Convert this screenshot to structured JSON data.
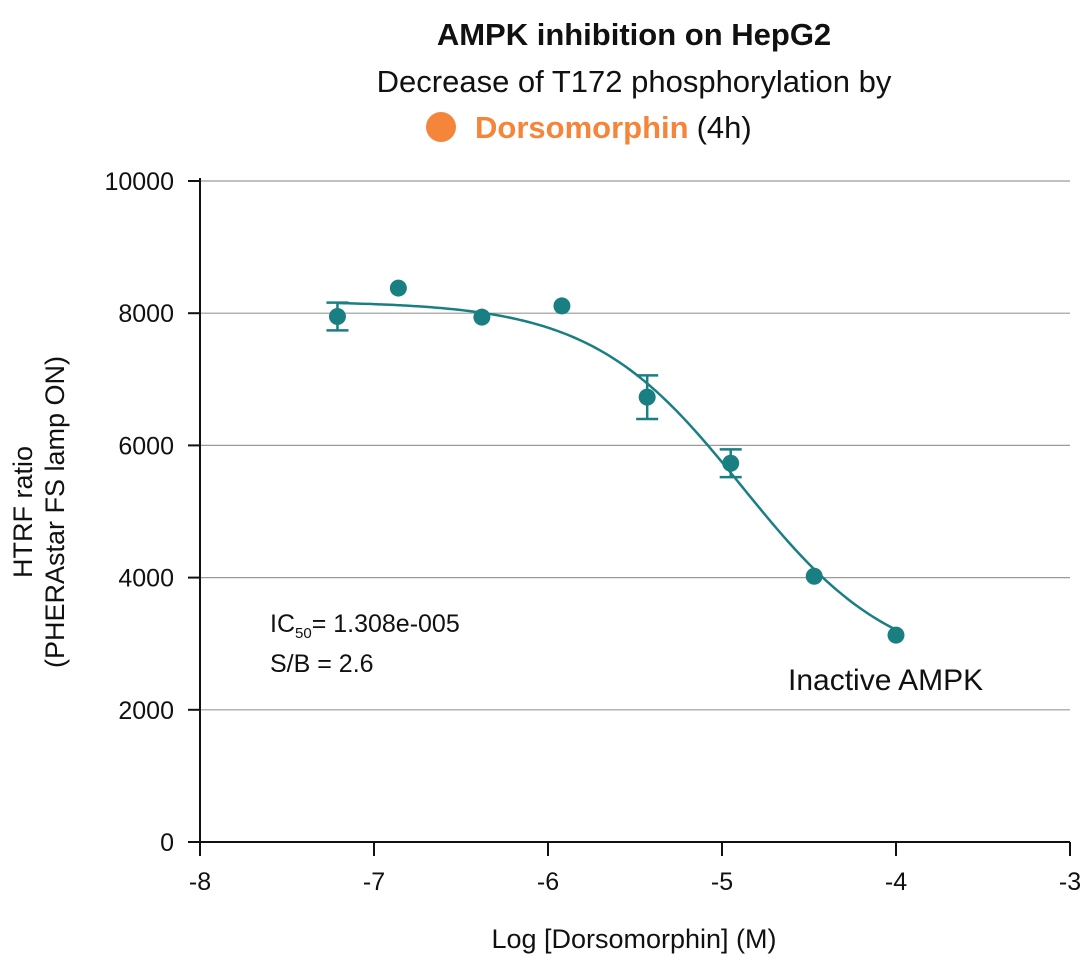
{
  "colors": {
    "series": "#1a7f82",
    "highlight": "#f5853a",
    "grid": "#9a9a9a",
    "axis": "#111111"
  },
  "chart_data": {
    "type": "scatter",
    "title": "AMPK inhibition on HepG2",
    "subtitle_line1": "Decrease of T172 phosphorylation by",
    "subtitle_compound": "Dorsomorphin",
    "subtitle_suffix": "(4h)",
    "xlabel": "Log [Dorsomorphin] (M)",
    "ylabel_line1": "HTRF ratio",
    "ylabel_line2": "(PHERAstar FS lamp ON)",
    "xlim": [
      -8,
      -3
    ],
    "ylim": [
      0,
      10000
    ],
    "xticks": [
      -8,
      -7,
      -6,
      -5,
      -4,
      -3
    ],
    "xtick_labels": [
      "-8",
      "-7",
      "-6",
      "-5",
      "-4",
      "-3"
    ],
    "yticks": [
      0,
      2000,
      4000,
      6000,
      8000,
      10000
    ],
    "ytick_labels": [
      "0",
      "2000",
      "4000",
      "6000",
      "8000",
      "10000"
    ],
    "grid": "horizontal",
    "series": [
      {
        "x": [
          -7.21,
          -6.86,
          -6.38,
          -5.92,
          -5.43,
          -4.95,
          -4.47,
          -4.0
        ],
        "y": [
          7950,
          8380,
          7940,
          8110,
          6730,
          5730,
          4020,
          3130
        ],
        "error": [
          210,
          0,
          0,
          0,
          330,
          210,
          0,
          0
        ]
      }
    ],
    "fit_curve": {
      "model": "4PL",
      "top": 8180,
      "bottom": 2560,
      "logIC50": -4.883,
      "hill": 1.0,
      "x_range": [
        -7.21,
        -4.0
      ]
    },
    "annotations": {
      "ic50_prefix": "IC",
      "ic50_sub": "50",
      "ic50_value": "= 1.308e-005",
      "sb": "S/B = 2.6",
      "state_label": "Inactive AMPK"
    }
  }
}
